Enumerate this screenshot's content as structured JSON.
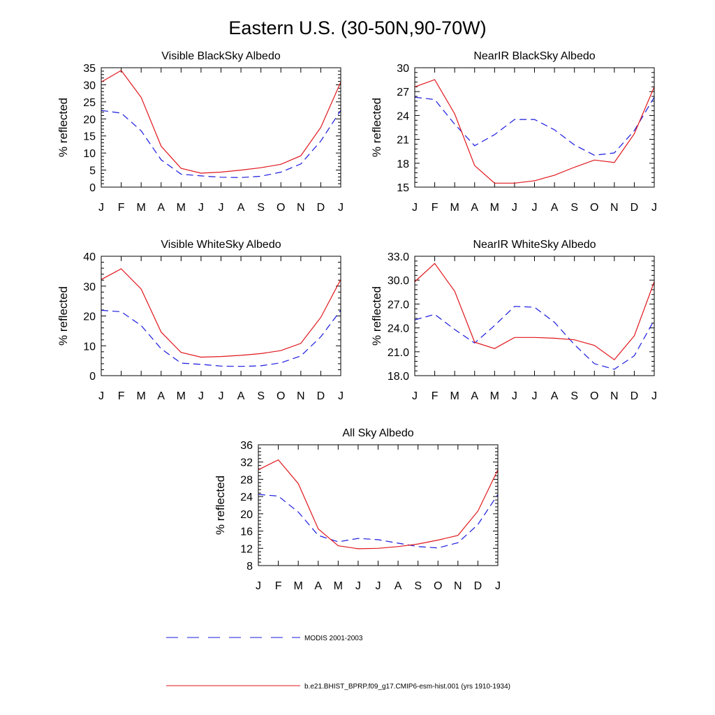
{
  "title": "Eastern U.S. (30-50N,90-70W)",
  "colors": {
    "model": "#e0161b",
    "obs": "#1a1adf",
    "axis": "#000000"
  },
  "legend": [
    {
      "label": "MODIS 2001-2003",
      "series": "obs",
      "style": "dashed"
    },
    {
      "label": "b.e21.BHIST_BPRP.f09_g17.CMIP6-esm-hist.001 (yrs 1910-1934)",
      "series": "model",
      "style": "solid"
    }
  ],
  "chart_data": [
    {
      "type": "line",
      "title": "Visible BlackSky Albedo",
      "xlabel": "",
      "ylabel": "% reflected",
      "categories": [
        "J",
        "F",
        "M",
        "A",
        "M",
        "J",
        "J",
        "A",
        "S",
        "O",
        "N",
        "D",
        "J"
      ],
      "ylim": [
        0,
        35
      ],
      "yticks": [
        0,
        5,
        10,
        15,
        20,
        25,
        30,
        35
      ],
      "ytick_labels": [
        "0",
        "5",
        "10",
        "15",
        "20",
        "25",
        "30",
        "35"
      ],
      "series": [
        {
          "name": "MODIS 2001-2003",
          "key": "obs",
          "values": [
            22.5,
            21.7,
            16.5,
            8,
            3.8,
            3.3,
            2.9,
            2.8,
            3.2,
            4.4,
            6.8,
            13.5,
            22.5
          ]
        },
        {
          "name": "b.e21.BHIST_BPRP.f09_g17.CMIP6-esm-hist.001 (yrs 1910-1934)",
          "key": "model",
          "values": [
            30.8,
            34.2,
            26.3,
            12,
            5.5,
            4.1,
            4.4,
            5,
            5.7,
            6.7,
            9.2,
            17.5,
            30.8
          ]
        }
      ]
    },
    {
      "type": "line",
      "title": "NearIR BlackSky Albedo",
      "xlabel": "",
      "ylabel": "% reflected",
      "categories": [
        "J",
        "F",
        "M",
        "A",
        "M",
        "J",
        "J",
        "A",
        "S",
        "O",
        "N",
        "D",
        "J"
      ],
      "ylim": [
        15,
        30
      ],
      "yticks": [
        15,
        18,
        21,
        24,
        27,
        30
      ],
      "ytick_labels": [
        "15",
        "18",
        "21",
        "24",
        "27",
        "30"
      ],
      "series": [
        {
          "name": "MODIS 2001-2003",
          "key": "obs",
          "values": [
            26.3,
            26,
            22.9,
            20.2,
            21.6,
            23.5,
            23.5,
            22.2,
            20.3,
            19,
            19.3,
            22.1,
            26.3
          ]
        },
        {
          "name": "b.e21.BHIST_BPRP.f09_g17.CMIP6-esm-hist.001 (yrs 1910-1934)",
          "key": "model",
          "values": [
            27.6,
            28.5,
            24.2,
            17.7,
            15.5,
            15.5,
            15.8,
            16.5,
            17.5,
            18.4,
            18.1,
            21.7,
            27.6
          ]
        }
      ]
    },
    {
      "type": "line",
      "title": "Visible WhiteSky Albedo",
      "xlabel": "",
      "ylabel": "% reflected",
      "categories": [
        "J",
        "F",
        "M",
        "A",
        "M",
        "J",
        "J",
        "A",
        "S",
        "O",
        "N",
        "D",
        "J"
      ],
      "ylim": [
        0,
        40
      ],
      "yticks": [
        0,
        10,
        20,
        30,
        40
      ],
      "ytick_labels": [
        "0",
        "10",
        "20",
        "30",
        "40"
      ],
      "series": [
        {
          "name": "MODIS 2001-2003",
          "key": "obs",
          "values": [
            21.9,
            21.4,
            16.8,
            9,
            4.2,
            3.8,
            3.2,
            3.1,
            3.3,
            4.3,
            6.6,
            13,
            21.9
          ]
        },
        {
          "name": "b.e21.BHIST_BPRP.f09_g17.CMIP6-esm-hist.001 (yrs 1910-1934)",
          "key": "model",
          "values": [
            32.2,
            35.8,
            29,
            14.6,
            7.8,
            6.2,
            6.4,
            6.8,
            7.4,
            8.4,
            10.8,
            19.5,
            32.2
          ]
        }
      ]
    },
    {
      "type": "line",
      "title": "NearIR WhiteSky Albedo",
      "xlabel": "",
      "ylabel": "% reflected",
      "categories": [
        "J",
        "F",
        "M",
        "A",
        "M",
        "J",
        "J",
        "A",
        "S",
        "O",
        "N",
        "D",
        "J"
      ],
      "ylim": [
        18,
        33
      ],
      "yticks": [
        18,
        21,
        24,
        27,
        30,
        33
      ],
      "ytick_labels": [
        "18.0",
        "21.0",
        "24.0",
        "27.0",
        "30.0",
        "33.0"
      ],
      "series": [
        {
          "name": "MODIS 2001-2003",
          "key": "obs",
          "values": [
            25,
            25.7,
            23.8,
            22.1,
            24.3,
            26.7,
            26.6,
            24.7,
            21.9,
            19.5,
            18.8,
            20.5,
            25
          ]
        },
        {
          "name": "b.e21.BHIST_BPRP.f09_g17.CMIP6-esm-hist.001 (yrs 1910-1934)",
          "key": "model",
          "values": [
            29.8,
            32.1,
            28.6,
            22.2,
            21.4,
            22.8,
            22.8,
            22.7,
            22.5,
            21.8,
            20,
            23,
            29.8
          ]
        }
      ]
    },
    {
      "type": "line",
      "title": "All Sky Albedo",
      "xlabel": "",
      "ylabel": "% reflected",
      "categories": [
        "J",
        "F",
        "M",
        "A",
        "M",
        "J",
        "J",
        "A",
        "S",
        "O",
        "N",
        "D",
        "J"
      ],
      "ylim": [
        8,
        36
      ],
      "yticks": [
        8,
        12,
        16,
        20,
        24,
        28,
        32,
        36
      ],
      "ytick_labels": [
        "8",
        "12",
        "16",
        "20",
        "24",
        "28",
        "32",
        "36"
      ],
      "series": [
        {
          "name": "MODIS 2001-2003",
          "key": "obs",
          "values": [
            24.5,
            24.1,
            20.4,
            15,
            13.5,
            14.3,
            14,
            13.2,
            12.4,
            12.1,
            13.3,
            17.5,
            24.5
          ]
        },
        {
          "name": "b.e21.BHIST_BPRP.f09_g17.CMIP6-esm-hist.001 (yrs 1910-1934)",
          "key": "model",
          "values": [
            30.2,
            32.5,
            27,
            16.5,
            12.6,
            11.9,
            12,
            12.4,
            13,
            13.9,
            15,
            20.6,
            30.2
          ]
        }
      ]
    }
  ]
}
